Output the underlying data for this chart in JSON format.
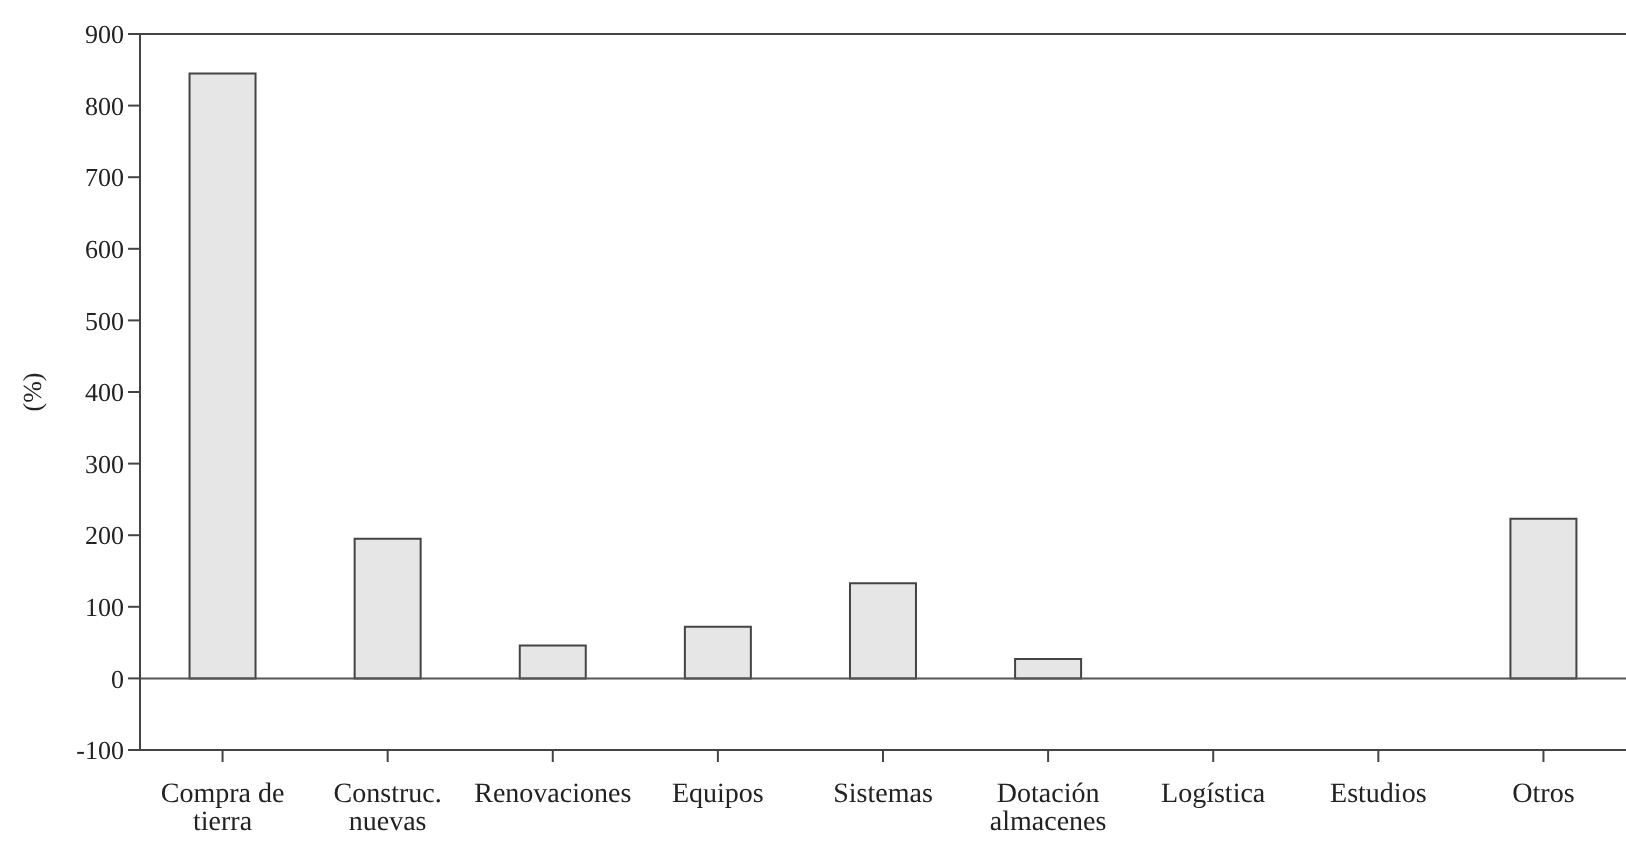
{
  "chart_data": {
    "type": "bar",
    "ylabel": "(%)",
    "categories": [
      "Compra de tierra",
      "Construc. nuevas",
      "Renovaciones",
      "Equipos",
      "Sistemas",
      "Dotación almacenes",
      "Logística",
      "Estudios",
      "Otros"
    ],
    "values": [
      845,
      195,
      46,
      72,
      133,
      27,
      0,
      0,
      223
    ],
    "color": "#e6e6e6",
    "ylim": [
      -100,
      900
    ],
    "yticks": [
      -100,
      0,
      100,
      200,
      300,
      400,
      500,
      600,
      700,
      800,
      900
    ],
    "ref_lines": [
      {
        "axis": "y",
        "value": 0,
        "color": "#555555"
      }
    ],
    "grid": false,
    "legend": false
  }
}
